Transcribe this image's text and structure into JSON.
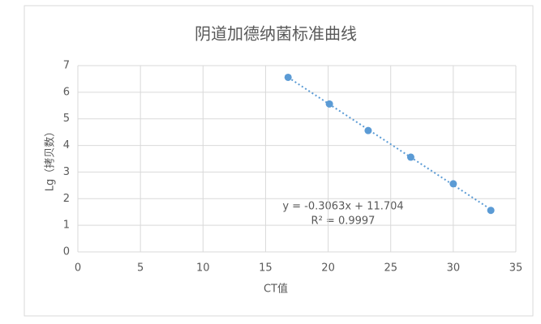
{
  "chart_data": {
    "type": "scatter",
    "title": "阴道加德纳菌标准曲线",
    "x_label": "CT值",
    "y_label": "Lg（拷贝数）",
    "series": [
      {
        "name": "Lg（拷贝数）",
        "color": "#5b9bd5",
        "x": [
          16.8,
          20.1,
          23.2,
          26.6,
          30.0,
          33.0
        ],
        "values": [
          6.56,
          5.56,
          4.56,
          3.56,
          2.56,
          1.56
        ]
      }
    ],
    "trendline": {
      "slope": -0.3063,
      "intercept": 11.704,
      "equation": "y = -0.3063x + 11.704",
      "r2_label": "R² = 0.9997"
    },
    "xlim": [
      0,
      35
    ],
    "xticks": [
      0,
      5,
      10,
      15,
      20,
      25,
      30,
      35
    ],
    "ylim": [
      0,
      7
    ],
    "yticks": [
      0,
      1,
      2,
      3,
      4,
      5,
      6,
      7
    ],
    "grid": true
  }
}
